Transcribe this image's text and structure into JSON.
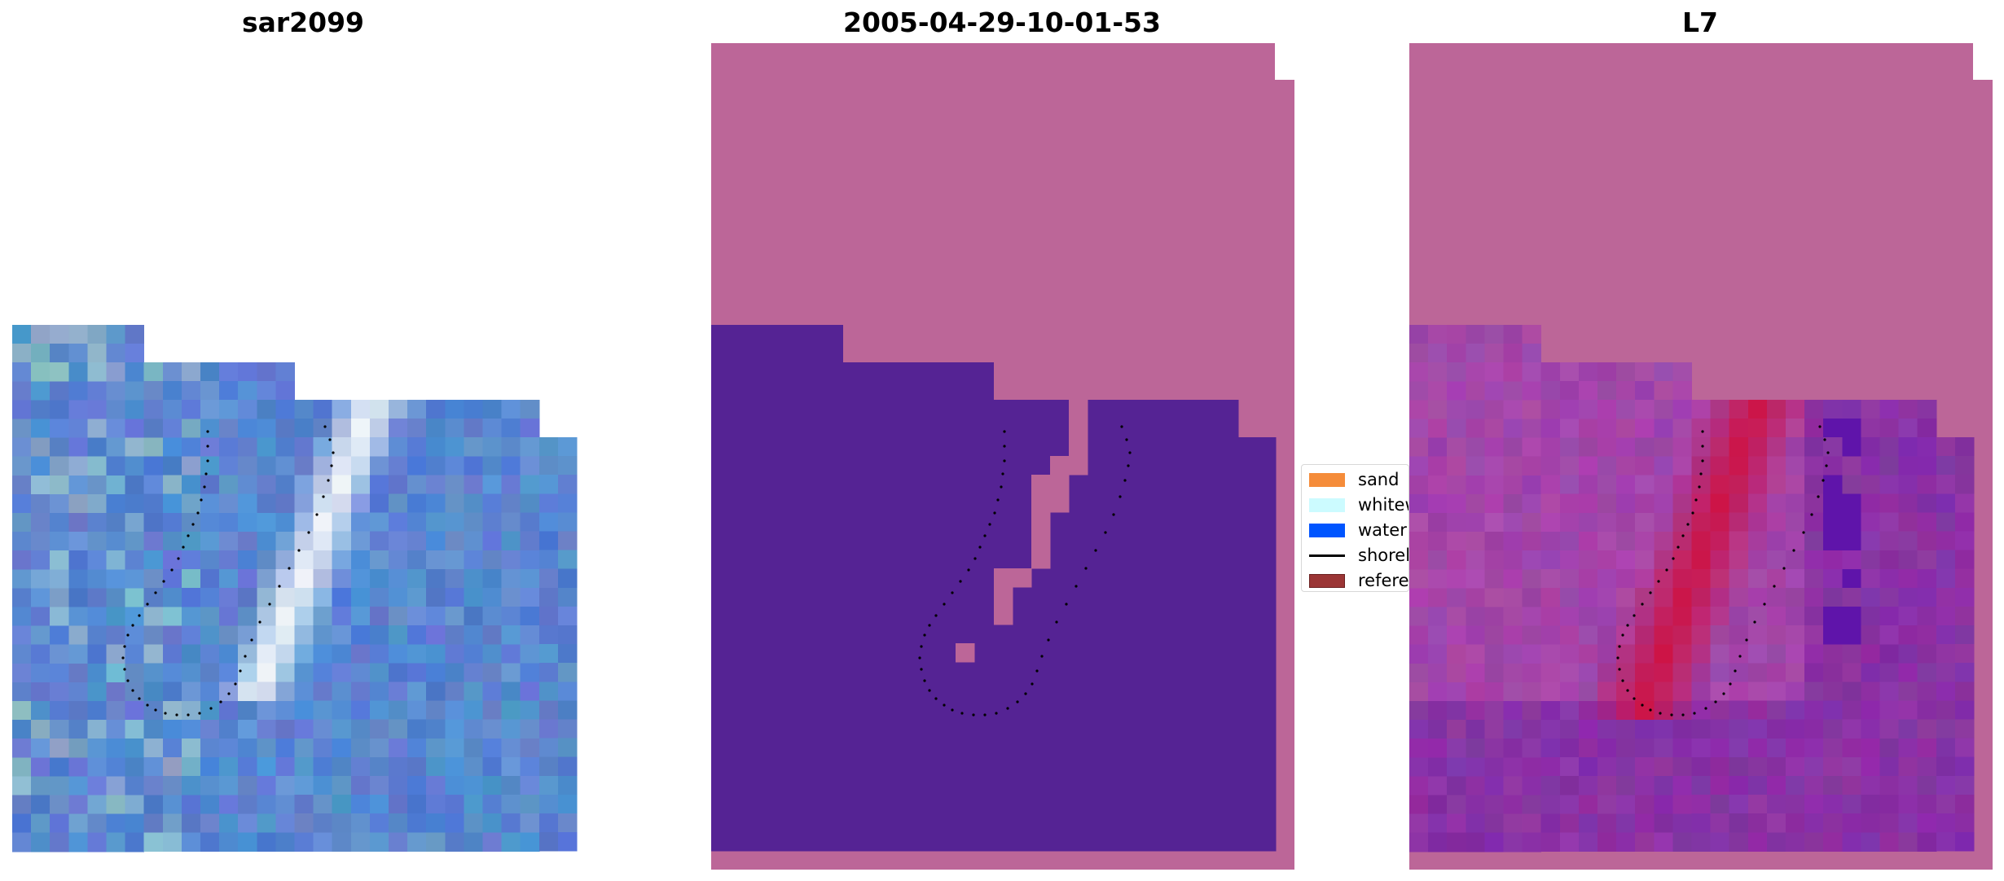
{
  "panels": [
    {
      "title": "sar2099"
    },
    {
      "title": "2005-04-29-10-01-53"
    },
    {
      "title": "L7"
    }
  ],
  "legend": {
    "items": [
      {
        "label": "sand",
        "color": "#f58c3a",
        "kind": "patch"
      },
      {
        "label": "whitewater",
        "color": "#ccfbff",
        "kind": "patch"
      },
      {
        "label": "water",
        "color": "#0055ff",
        "kind": "patch"
      },
      {
        "label": "shoreline",
        "color": "#000000",
        "kind": "line"
      },
      {
        "label": "reference shoreline",
        "color": "#9b3535",
        "kind": "patch"
      }
    ]
  },
  "colors": {
    "background_pink": "#bc6698",
    "water_purple": "#552394",
    "sar_blue": "#4a7ac8",
    "brightness_red": "#c8103a"
  },
  "icons": [
    "legend-patch-icon",
    "legend-line-icon"
  ]
}
